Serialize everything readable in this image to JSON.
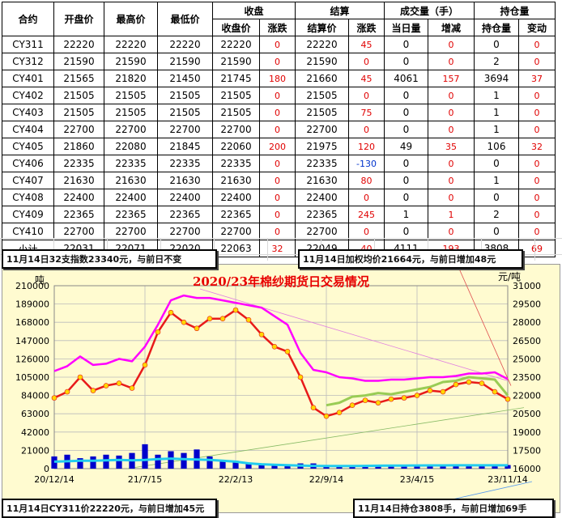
{
  "table": {
    "header_row1": {
      "contract": "合约",
      "open": "开盘价",
      "high": "最高价",
      "low": "最低价",
      "close_group": "收盘",
      "settle_group": "结算",
      "volume_group": "成交量（手）",
      "oi_group": "持仓量"
    },
    "header_row2": {
      "close_price": "收盘价",
      "close_change": "涨跌",
      "settle_price": "结算价",
      "settle_change": "涨跌",
      "volume_today": "当日量",
      "volume_change": "增减",
      "oi_amount": "持仓量",
      "oi_change": "变动"
    },
    "rows": [
      {
        "contract": "CY311",
        "open": "22220",
        "high": "22220",
        "low": "22220",
        "close": "22220",
        "close_chg": "0",
        "settle": "22220",
        "settle_chg": "45",
        "vol": "0",
        "vol_chg": "0",
        "oi": "0",
        "oi_chg": "0"
      },
      {
        "contract": "CY312",
        "open": "21590",
        "high": "21590",
        "low": "21590",
        "close": "21590",
        "close_chg": "0",
        "settle": "21590",
        "settle_chg": "0",
        "vol": "0",
        "vol_chg": "0",
        "oi": "2",
        "oi_chg": "0"
      },
      {
        "contract": "CY401",
        "open": "21565",
        "high": "21820",
        "low": "21450",
        "close": "21745",
        "close_chg": "180",
        "settle": "21660",
        "settle_chg": "45",
        "vol": "4061",
        "vol_chg": "157",
        "oi": "3694",
        "oi_chg": "37"
      },
      {
        "contract": "CY402",
        "open": "21505",
        "high": "21505",
        "low": "21505",
        "close": "21505",
        "close_chg": "0",
        "settle": "21505",
        "settle_chg": "0",
        "vol": "0",
        "vol_chg": "0",
        "oi": "1",
        "oi_chg": "0"
      },
      {
        "contract": "CY403",
        "open": "21505",
        "high": "21505",
        "low": "21505",
        "close": "21505",
        "close_chg": "0",
        "settle": "21505",
        "settle_chg": "75",
        "vol": "0",
        "vol_chg": "0",
        "oi": "1",
        "oi_chg": "0"
      },
      {
        "contract": "CY404",
        "open": "22700",
        "high": "22700",
        "low": "22700",
        "close": "22700",
        "close_chg": "0",
        "settle": "22700",
        "settle_chg": "0",
        "vol": "0",
        "vol_chg": "0",
        "oi": "1",
        "oi_chg": "0"
      },
      {
        "contract": "CY405",
        "open": "21860",
        "high": "22080",
        "low": "21845",
        "close": "22060",
        "close_chg": "200",
        "settle": "21975",
        "settle_chg": "120",
        "vol": "49",
        "vol_chg": "35",
        "oi": "106",
        "oi_chg": "32"
      },
      {
        "contract": "CY406",
        "open": "22335",
        "high": "22335",
        "low": "22335",
        "close": "22335",
        "close_chg": "0",
        "settle": "22335",
        "settle_chg": "-130",
        "vol": "0",
        "vol_chg": "0",
        "oi": "0",
        "oi_chg": "0"
      },
      {
        "contract": "CY407",
        "open": "21630",
        "high": "21630",
        "low": "21630",
        "close": "21630",
        "close_chg": "0",
        "settle": "21630",
        "settle_chg": "80",
        "vol": "0",
        "vol_chg": "0",
        "oi": "1",
        "oi_chg": "0"
      },
      {
        "contract": "CY408",
        "open": "22400",
        "high": "22400",
        "low": "22400",
        "close": "22400",
        "close_chg": "0",
        "settle": "22400",
        "settle_chg": "0",
        "vol": "0",
        "vol_chg": "0",
        "oi": "0",
        "oi_chg": "0"
      },
      {
        "contract": "CY409",
        "open": "22365",
        "high": "22365",
        "low": "22365",
        "close": "22365",
        "close_chg": "0",
        "settle": "22365",
        "settle_chg": "245",
        "vol": "1",
        "vol_chg": "1",
        "oi": "2",
        "oi_chg": "0"
      },
      {
        "contract": "CY410",
        "open": "22700",
        "high": "22700",
        "low": "22700",
        "close": "22700",
        "close_chg": "0",
        "settle": "22700",
        "settle_chg": "0",
        "vol": "0",
        "vol_chg": "0",
        "oi": "0",
        "oi_chg": "0"
      },
      {
        "contract": "小计",
        "open": "22031",
        "high": "22071",
        "low": "22020",
        "close": "22063",
        "close_chg": "32",
        "settle": "22049",
        "settle_chg": "40",
        "vol": "4111",
        "vol_chg": "193",
        "oi": "3808",
        "oi_chg": "69"
      }
    ]
  },
  "callouts": {
    "index_note": "11月14日32支指数23340元，与前日不变",
    "weighted_note": "11月14日加权均价21664元，与前日增加48元",
    "cy311_note": "11月14日CY311价22220元，与前日增加45元",
    "oi_note": "11月14日持仓3808手，与前日增加69手"
  },
  "colors": {
    "chart_bg": "#fffbd0",
    "price_line": "#e81a1a",
    "price_marker": "#ffd700",
    "index_line": "#ff00ff",
    "spot_line": "#99cc55",
    "volume_bar": "#0000cc",
    "oi_line": "#22ccee",
    "change_up": "#e00000",
    "change_down": "#0033cc"
  },
  "chart_data": {
    "type": "line",
    "title": "2020/23年棉纱期货日交易情况",
    "left_unit": "吨",
    "right_unit": "元/吨",
    "left_ylim": [
      0,
      210000
    ],
    "left_ticks": [
      "0",
      "21000",
      "42000",
      "63000",
      "84000",
      "105000",
      "126000",
      "147000",
      "168000",
      "189000",
      "210000"
    ],
    "right_ylim": [
      16000,
      31000
    ],
    "right_ticks": [
      "16000",
      "17500",
      "19000",
      "20500",
      "22000",
      "23500",
      "25000",
      "26500",
      "28000",
      "29500",
      "31000"
    ],
    "x_ticks": [
      "20/12/14",
      "21/7/15",
      "22/2/13",
      "22/9/14",
      "23/4/15",
      "23/11/14"
    ],
    "grid": true,
    "x": [
      "20/12/14",
      "21/1/15",
      "21/2/15",
      "21/3/15",
      "21/4/15",
      "21/5/15",
      "21/6/15",
      "21/7/15",
      "21/8/15",
      "21/9/15",
      "21/10/15",
      "21/11/15",
      "21/12/15",
      "22/1/15",
      "22/2/13",
      "22/3/15",
      "22/4/15",
      "22/5/15",
      "22/6/15",
      "22/7/15",
      "22/8/15",
      "22/9/14",
      "22/10/15",
      "22/11/15",
      "22/12/15",
      "23/1/15",
      "23/2/15",
      "23/3/15",
      "23/4/15",
      "23/5/15",
      "23/6/15",
      "23/7/15",
      "23/8/15",
      "23/9/15",
      "23/10/15",
      "23/11/14"
    ],
    "series": [
      {
        "axis": "right",
        "values": [
          21800,
          22300,
          23500,
          22400,
          22800,
          23000,
          22600,
          24500,
          27200,
          28800,
          28000,
          27500,
          28300,
          28300,
          29000,
          28200,
          27000,
          26000,
          25600,
          23500,
          21000,
          20300,
          20600,
          21200,
          21600,
          21400,
          21700,
          21800,
          22000,
          22400,
          22300,
          22900,
          23100,
          23000,
          22300,
          21700
        ]
      },
      {
        "axis": "right",
        "values": [
          24000,
          24400,
          25200,
          24500,
          24600,
          25000,
          24800,
          26000,
          27800,
          29800,
          30200,
          30000,
          30000,
          29800,
          29600,
          29400,
          29200,
          28500,
          27800,
          25500,
          24100,
          23900,
          23500,
          23400,
          23200,
          23200,
          23300,
          23300,
          23400,
          23500,
          23500,
          23600,
          23800,
          23800,
          23900,
          23340
        ]
      },
      {
        "axis": "right",
        "values": [
          null,
          null,
          null,
          null,
          null,
          null,
          null,
          null,
          null,
          null,
          null,
          null,
          null,
          null,
          null,
          null,
          null,
          null,
          null,
          null,
          null,
          21200,
          21400,
          21900,
          22000,
          22200,
          22100,
          22300,
          22500,
          22700,
          23100,
          23200,
          23500,
          23400,
          23300,
          22000
        ]
      },
      {
        "axis": "left",
        "values": [
          14000,
          16000,
          12000,
          14000,
          16000,
          15000,
          18000,
          28000,
          16000,
          20000,
          18000,
          22000,
          14000,
          8000,
          9000,
          7000,
          6000,
          5000,
          5000,
          6000,
          6000,
          4000,
          3000,
          3000,
          3000,
          3000,
          3000,
          3000,
          3000,
          3000,
          3000,
          3000,
          3000,
          3000,
          3000,
          4111
        ]
      },
      {
        "axis": "left",
        "values": [
          8000,
          8500,
          9000,
          9000,
          9500,
          10000,
          9500,
          10000,
          11000,
          11500,
          11000,
          10500,
          10000,
          9000,
          8000,
          6000,
          5000,
          4500,
          4000,
          3500,
          3200,
          3000,
          3000,
          3100,
          3200,
          3300,
          3400,
          3500,
          3600,
          3700,
          3700,
          3800,
          3800,
          3800,
          3800,
          3808
        ]
      }
    ],
    "guide_lines": true
  }
}
